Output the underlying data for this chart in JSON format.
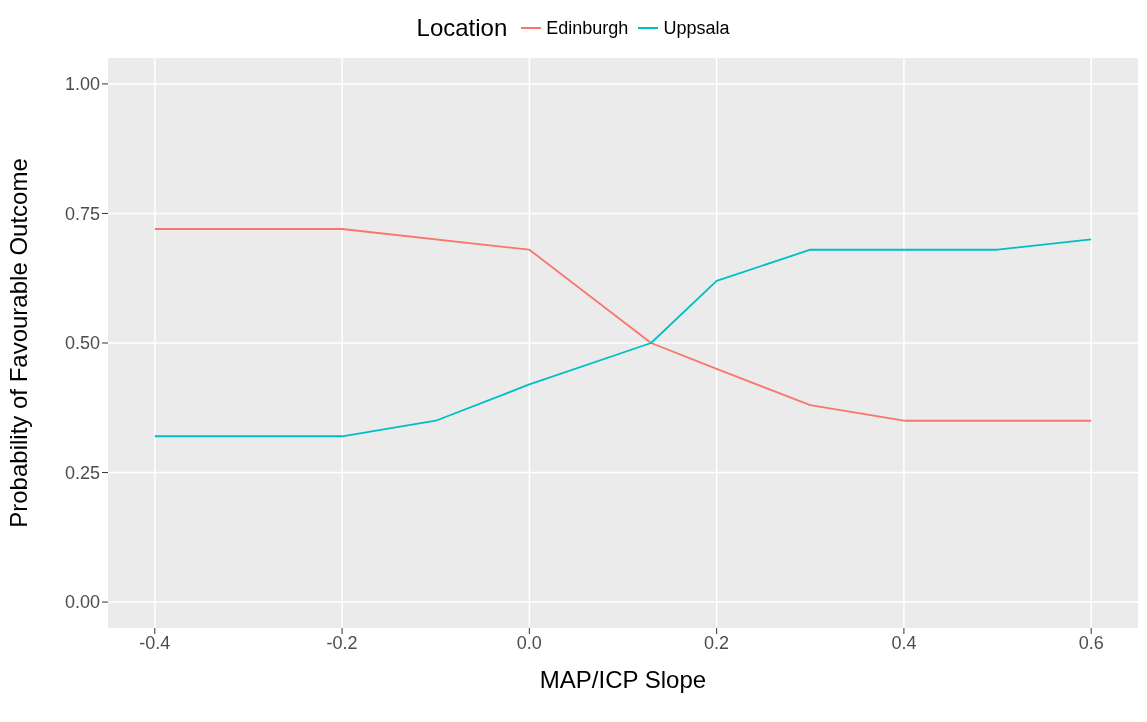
{
  "chart_data": {
    "type": "line",
    "xlabel": "MAP/ICP Slope",
    "ylabel": "Probability of Favourable Outcome",
    "legend_title": "Location",
    "legend": "top",
    "series": [
      {
        "name": "Edinburgh",
        "color": "#f8766d",
        "x": [
          -0.4,
          -0.2,
          0,
          0.13,
          0.2,
          0.3,
          0.4,
          0.6
        ],
        "values": [
          0.72,
          0.72,
          0.68,
          0.5,
          0.45,
          0.38,
          0.35,
          0.35
        ]
      },
      {
        "name": "Uppsala",
        "color": "#00bfc4",
        "x": [
          -0.4,
          -0.2,
          -0.1,
          0,
          0.13,
          0.2,
          0.3,
          0.5,
          0.6
        ],
        "values": [
          0.32,
          0.32,
          0.35,
          0.42,
          0.5,
          0.62,
          0.68,
          0.68,
          0.7
        ]
      }
    ],
    "xlim": [
      -0.45,
      0.65
    ],
    "xticks": [
      -0.4,
      -0.2,
      {
        "value": 0,
        "label": "0.0"
      },
      0.2,
      0.4,
      0.6
    ],
    "ylim": [
      -0.05,
      1.05
    ],
    "yticks": [
      {
        "value": 0,
        "label": "0.00"
      },
      {
        "value": 0.25,
        "label": "0.25"
      },
      {
        "value": 0.5,
        "label": "0.50"
      },
      {
        "value": 0.75,
        "label": "0.75"
      },
      {
        "value": 1,
        "label": "1.00"
      }
    ],
    "grid": true,
    "marker": "none",
    "line_style": "solid"
  }
}
